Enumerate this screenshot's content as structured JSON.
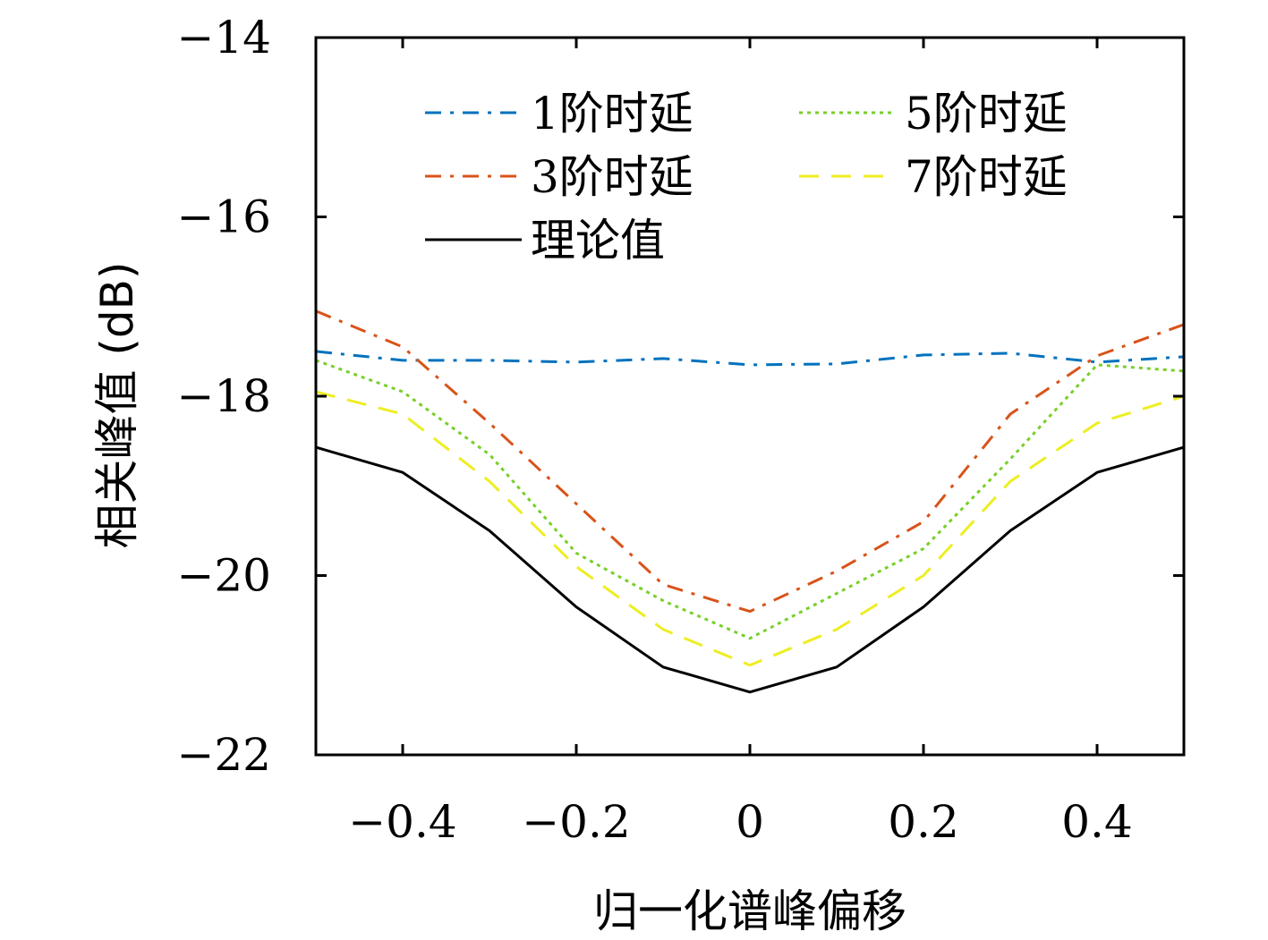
{
  "chart_data": {
    "type": "line",
    "title": "",
    "xlabel": "归一化谱峰偏移",
    "ylabel": "相关峰值 (dB)",
    "xlim": [
      -0.5,
      0.5
    ],
    "ylim": [
      -22,
      -14
    ],
    "xticks": [
      -0.4,
      -0.2,
      0,
      0.2,
      0.4
    ],
    "xtick_labels": [
      "−0.4",
      "−0.2",
      "0",
      "0.2",
      "0.4"
    ],
    "yticks": [
      -22,
      -20,
      -18,
      -16,
      -14
    ],
    "ytick_labels": [
      "−22",
      "−20",
      "−18",
      "−16",
      "−14"
    ],
    "grid": false,
    "legend_position": "top",
    "x": [
      -0.5,
      -0.4,
      -0.3,
      -0.2,
      -0.1,
      0,
      0.1,
      0.2,
      0.3,
      0.4,
      0.5
    ],
    "series": [
      {
        "name": "1阶时延",
        "color": "#0072BD",
        "dash": "dash-dot",
        "values": [
          -17.5,
          -17.6,
          -17.6,
          -17.62,
          -17.58,
          -17.65,
          -17.64,
          -17.54,
          -17.52,
          -17.62,
          -17.56
        ]
      },
      {
        "name": "3阶时延",
        "color": "#D95319",
        "dash": "dash-dot",
        "values": [
          -17.05,
          -17.45,
          -18.3,
          -19.2,
          -20.1,
          -20.4,
          -19.95,
          -19.4,
          -18.2,
          -17.55,
          -17.2
        ]
      },
      {
        "name": "5阶时延",
        "color": "#77D02A",
        "dash": "dotted",
        "values": [
          -17.6,
          -17.95,
          -18.65,
          -19.75,
          -20.28,
          -20.7,
          -20.2,
          -19.7,
          -18.7,
          -17.65,
          -17.72
        ]
      },
      {
        "name": "7阶时延",
        "color": "#EDEE22",
        "dash": "dashed",
        "values": [
          -17.95,
          -18.2,
          -18.95,
          -19.9,
          -20.6,
          -21.0,
          -20.6,
          -20.0,
          -18.95,
          -18.3,
          -18.0
        ]
      },
      {
        "name": "理论值",
        "color": "#000000",
        "dash": "solid",
        "values": [
          -18.57,
          -18.85,
          -19.5,
          -20.35,
          -21.02,
          -21.3,
          -21.02,
          -20.35,
          -19.5,
          -18.85,
          -18.57
        ]
      }
    ]
  }
}
